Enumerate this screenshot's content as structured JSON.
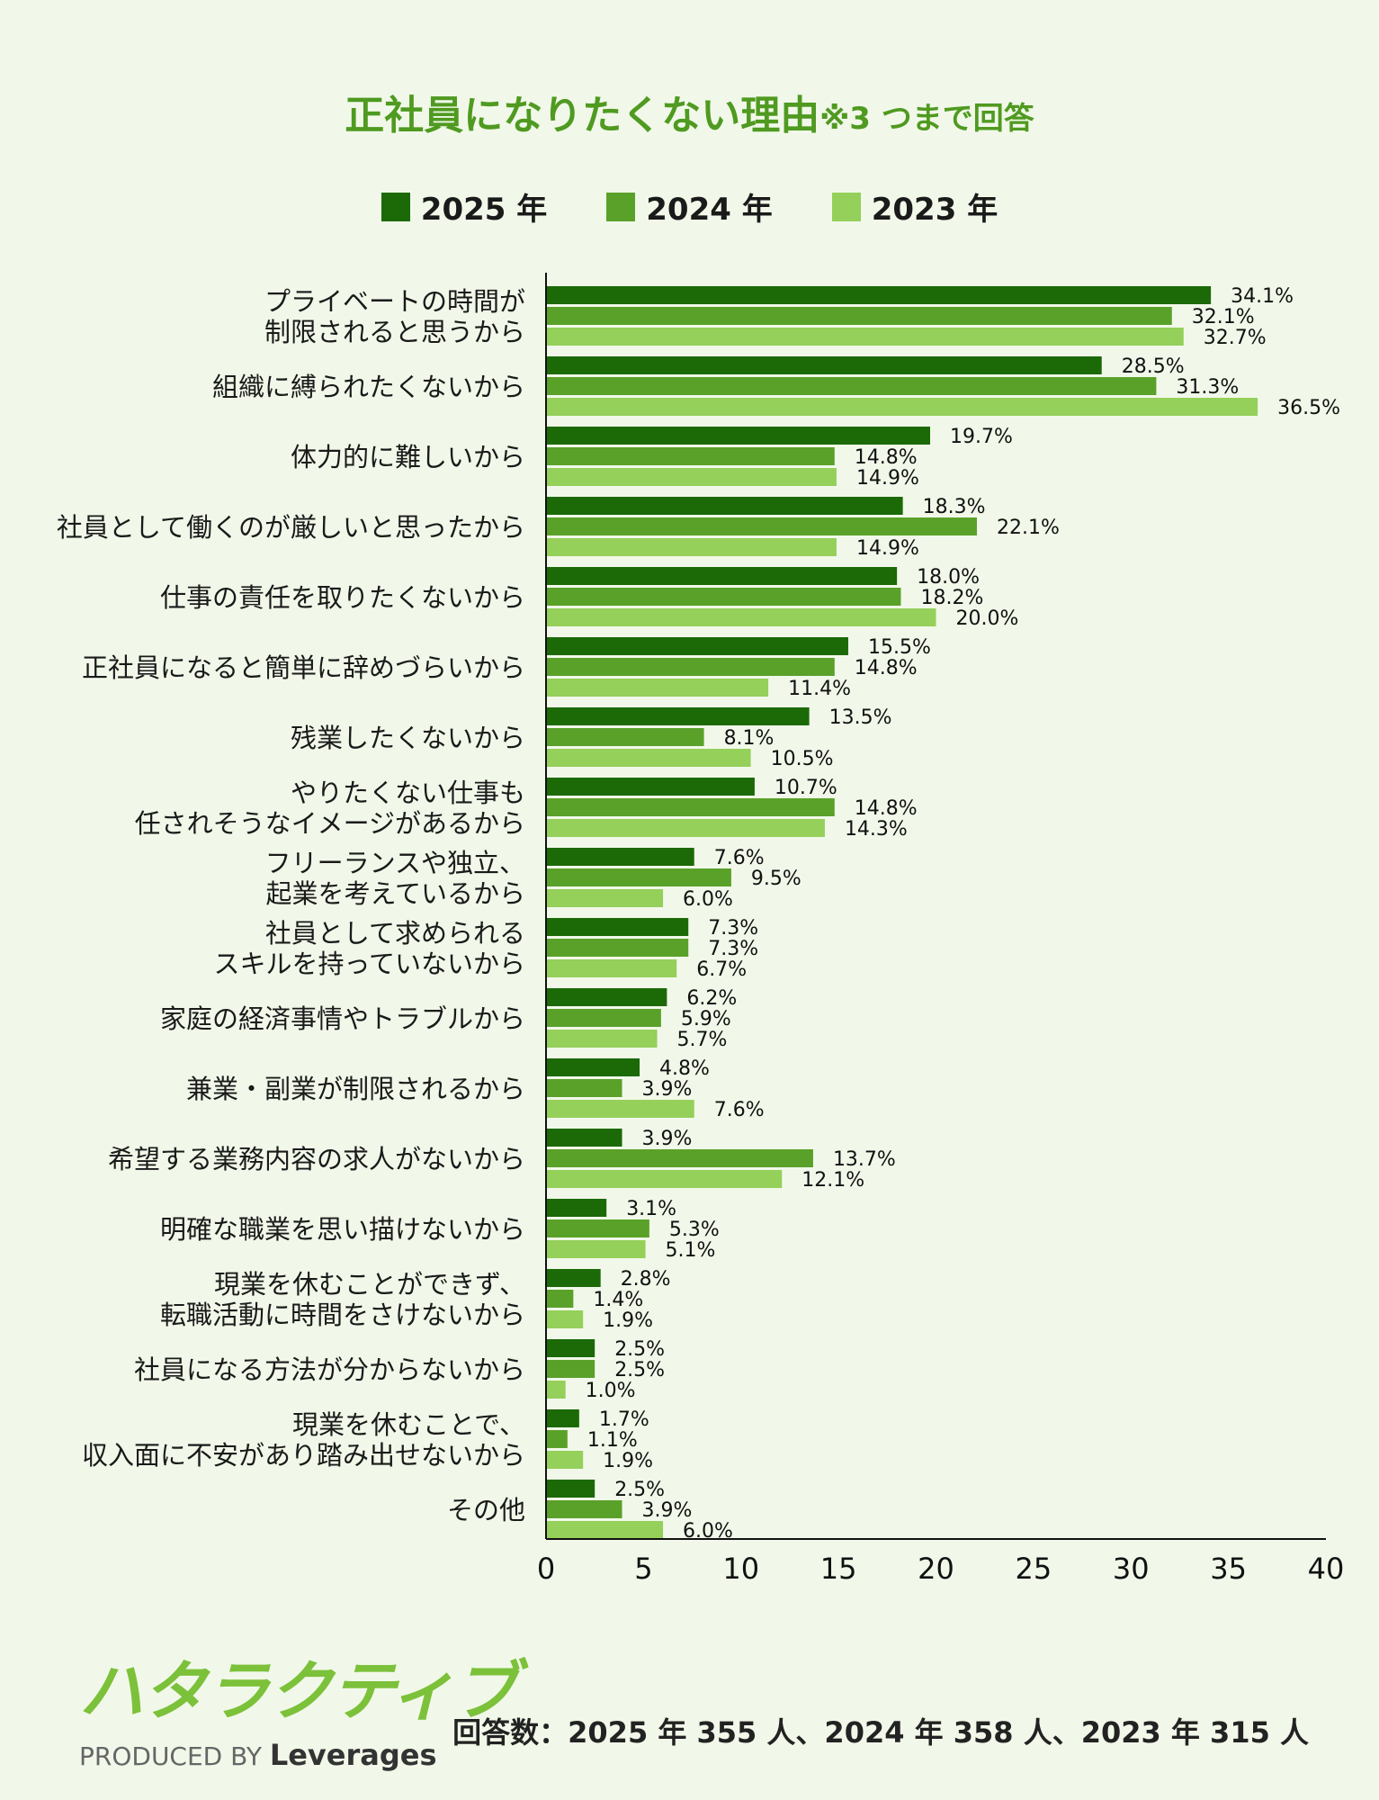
{
  "title": {
    "main": "正社員になりたくない理由",
    "note": "※3 つまで回答"
  },
  "colors": {
    "title": "#4f9a20",
    "s2025": "#1b6a07",
    "s2024": "#5aa12a",
    "s2023": "#95d05a",
    "axis": "#111111"
  },
  "footer": {
    "brand": "ハタラクティブ",
    "produced_by": "PRODUCED BY",
    "company": "Leverages",
    "respondents": "回答数：2025 年 355 人、2024 年 358 人、2023 年 315 人"
  },
  "chart_data": {
    "type": "bar",
    "orientation": "horizontal",
    "xlim": [
      0,
      40
    ],
    "xticks": [
      0,
      5,
      10,
      15,
      20,
      25,
      30,
      35,
      40
    ],
    "value_suffix": "%",
    "categories": [
      [
        "プライベートの時間が",
        "制限されると思うから"
      ],
      [
        "組織に縛られたくないから"
      ],
      [
        "体力的に難しいから"
      ],
      [
        "社員として働くのが厳しいと思ったから"
      ],
      [
        "仕事の責任を取りたくないから"
      ],
      [
        "正社員になると簡単に辞めづらいから"
      ],
      [
        "残業したくないから"
      ],
      [
        "やりたくない仕事も",
        "任されそうなイメージがあるから"
      ],
      [
        "フリーランスや独立、",
        "起業を考えているから"
      ],
      [
        "社員として求められる",
        "スキルを持っていないから"
      ],
      [
        "家庭の経済事情やトラブルから"
      ],
      [
        "兼業・副業が制限されるから"
      ],
      [
        "希望する業務内容の求人がないから"
      ],
      [
        "明確な職業を思い描けないから"
      ],
      [
        "現業を休むことができず、",
        "転職活動に時間をさけないから"
      ],
      [
        "社員になる方法が分からないから"
      ],
      [
        "現業を休むことで、",
        "収入面に不安があり踏み出せないから"
      ],
      [
        "その他"
      ]
    ],
    "series": [
      {
        "name": "2025 年",
        "color": "#1b6a07",
        "values": [
          34.1,
          28.5,
          19.7,
          18.3,
          18.0,
          15.5,
          13.5,
          10.7,
          7.6,
          7.3,
          6.2,
          4.8,
          3.9,
          3.1,
          2.8,
          2.5,
          1.7,
          2.5
        ]
      },
      {
        "name": "2024 年",
        "color": "#5aa12a",
        "values": [
          32.1,
          31.3,
          14.8,
          22.1,
          18.2,
          14.8,
          8.1,
          14.8,
          9.5,
          7.3,
          5.9,
          3.9,
          13.7,
          5.3,
          1.4,
          2.5,
          1.1,
          3.9
        ]
      },
      {
        "name": "2023 年",
        "color": "#95d05a",
        "values": [
          32.7,
          36.5,
          14.9,
          14.9,
          20.0,
          11.4,
          10.5,
          14.3,
          6.0,
          6.7,
          5.7,
          7.6,
          12.1,
          5.1,
          1.9,
          1.0,
          1.9,
          6.0
        ]
      }
    ]
  }
}
